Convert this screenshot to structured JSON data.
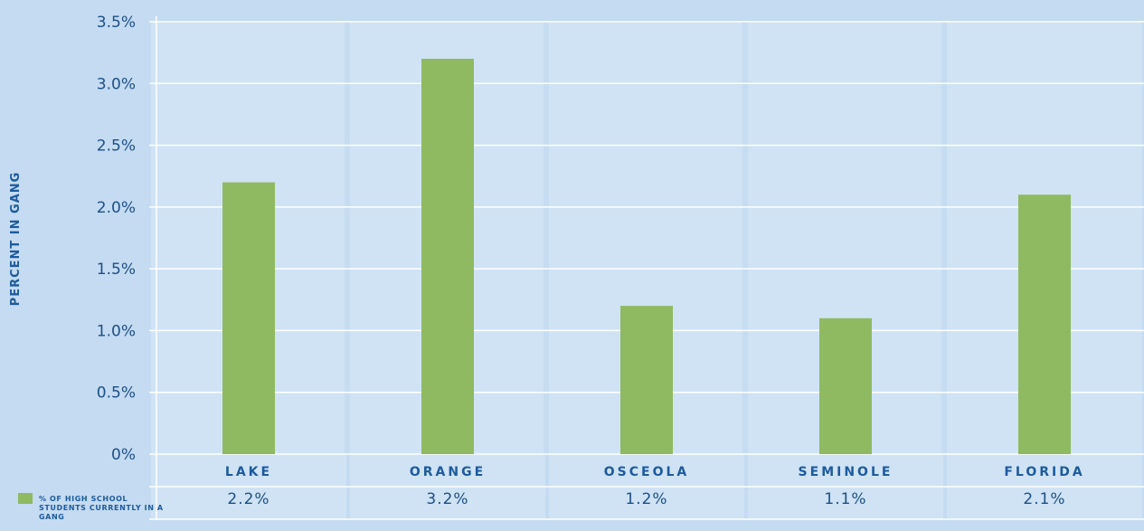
{
  "chart_data": {
    "type": "bar",
    "categories": [
      "LAKE",
      "ORANGE",
      "OSCEOLA",
      "SEMINOLE",
      "FLORIDA"
    ],
    "series": [
      {
        "name": "% of high school students currently in a gang",
        "values": [
          2.2,
          3.2,
          1.2,
          1.1,
          2.1
        ]
      }
    ],
    "value_labels": [
      "2.2%",
      "3.2%",
      "1.2%",
      "1.1%",
      "2.1%"
    ],
    "yticks": [
      {
        "value": 0,
        "label": "0%"
      },
      {
        "value": 0.5,
        "label": "0.5%"
      },
      {
        "value": 1.0,
        "label": "1.0%"
      },
      {
        "value": 1.5,
        "label": "1.5%"
      },
      {
        "value": 2.0,
        "label": "2.0%"
      },
      {
        "value": 2.5,
        "label": "2.5%"
      },
      {
        "value": 3.0,
        "label": "3.0%"
      },
      {
        "value": 3.5,
        "label": "3.5%"
      }
    ],
    "ylabel": "PERCENT IN GANG",
    "xlabel": "",
    "title": "",
    "ylim": [
      0,
      3.5
    ],
    "grid": true,
    "legend_position": "bottom-left",
    "colors": {
      "bar": "#8fba61",
      "background": "#c4dbf1",
      "plot": "#cfe3f5",
      "text": "#1d4f86"
    }
  }
}
